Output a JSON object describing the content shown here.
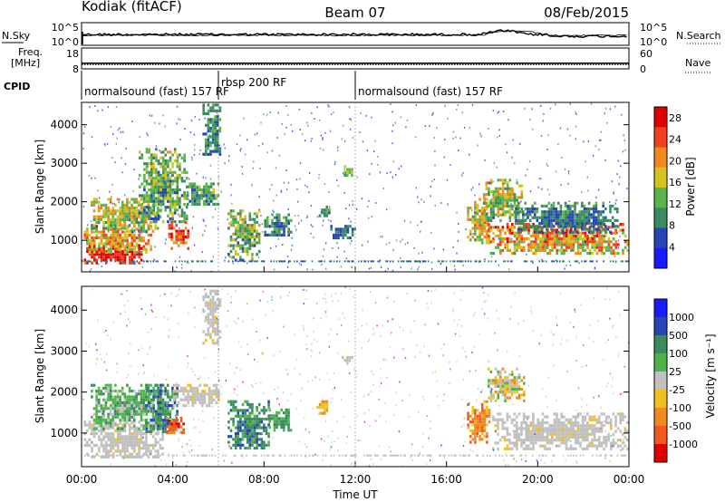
{
  "header": {
    "station": "Kodiak (fitACF)",
    "beam": "Beam 07",
    "date": "08/Feb/2015"
  },
  "noise_panel": {
    "left_label": "N.Sky",
    "right_label": "N.Search",
    "tick_top": "10^5",
    "tick_bottom": "10^0"
  },
  "freq_panel": {
    "left_label_1": "Freq.",
    "left_label_2": "[MHz]",
    "right_label": "Nave",
    "left_tick_top": "18",
    "left_tick_bottom": "8",
    "right_tick_top": "60",
    "right_tick_bottom": "0",
    "freq_value_mhz": 10.7,
    "nave_value": 12
  },
  "cpid": {
    "label": "CPID",
    "segments": [
      {
        "name": "normalsound (fast) 157 RF",
        "start_ut": "00:00",
        "end_ut": "06:00"
      },
      {
        "name": "rbsp 200 RF",
        "start_ut": "06:00",
        "end_ut": "12:00"
      },
      {
        "name": "normalsound (fast) 157 RF",
        "start_ut": "12:00",
        "end_ut": "24:00"
      }
    ]
  },
  "chart_data": [
    {
      "type": "heatmap",
      "name": "Power",
      "ylabel": "Slant Range [km]",
      "ylim": [
        180,
        4580
      ],
      "xlim_hours": [
        0,
        24
      ],
      "yticks": [
        "1000",
        "2000",
        "3000",
        "4000"
      ],
      "colorbar_label": "Power [dB]",
      "colorbar_ticks": [
        "4",
        "8",
        "12",
        "16",
        "20",
        "24",
        "28"
      ],
      "colorbar_range": [
        0,
        30
      ],
      "colors": [
        "#1a1aff",
        "#2845b4",
        "#3a8a62",
        "#5ab34c",
        "#d4c21e",
        "#f08a1a",
        "#f0401e",
        "#e00000"
      ],
      "blobs": [
        {
          "t": [
            0.1,
            2.6
          ],
          "r": [
            400,
            900
          ],
          "v": [
            22,
            30
          ]
        },
        {
          "t": [
            0.1,
            3.0
          ],
          "r": [
            700,
            1400
          ],
          "v": [
            12,
            26
          ]
        },
        {
          "t": [
            0.4,
            3.4
          ],
          "r": [
            1200,
            2100
          ],
          "v": [
            8,
            22
          ]
        },
        {
          "t": [
            2.5,
            4.6
          ],
          "r": [
            1500,
            3400
          ],
          "v": [
            4,
            18
          ]
        },
        {
          "t": [
            3.8,
            4.7
          ],
          "r": [
            800,
            1500
          ],
          "v": [
            18,
            28
          ]
        },
        {
          "t": [
            4.5,
            6.0
          ],
          "r": [
            1900,
            2500
          ],
          "v": [
            4,
            16
          ]
        },
        {
          "t": [
            5.3,
            6.1
          ],
          "r": [
            3200,
            4550
          ],
          "v": [
            4,
            14
          ]
        },
        {
          "t": [
            6.4,
            7.8
          ],
          "r": [
            500,
            1800
          ],
          "v": [
            4,
            20
          ]
        },
        {
          "t": [
            7.9,
            9.2
          ],
          "r": [
            1100,
            1700
          ],
          "v": [
            4,
            14
          ]
        },
        {
          "t": [
            10.4,
            10.9
          ],
          "r": [
            1600,
            1900
          ],
          "v": [
            4,
            14
          ]
        },
        {
          "t": [
            11.5,
            11.9
          ],
          "r": [
            2700,
            2950
          ],
          "v": [
            10,
            18
          ]
        },
        {
          "t": [
            10.8,
            12.0
          ],
          "r": [
            1050,
            1400
          ],
          "v": [
            4,
            10
          ]
        },
        {
          "t": [
            16.9,
            17.9
          ],
          "r": [
            900,
            2100
          ],
          "v": [
            10,
            24
          ]
        },
        {
          "t": [
            17.6,
            19.3
          ],
          "r": [
            1500,
            2600
          ],
          "v": [
            6,
            22
          ]
        },
        {
          "t": [
            17.8,
            23.9
          ],
          "r": [
            650,
            1450
          ],
          "v": [
            10,
            28
          ]
        },
        {
          "t": [
            19.0,
            23.5
          ],
          "r": [
            1200,
            2000
          ],
          "v": [
            4,
            12
          ]
        }
      ]
    },
    {
      "type": "heatmap",
      "name": "Velocity",
      "ylabel": "Slant Range [km]",
      "xlabel": "Time UT",
      "ylim": [
        180,
        4580
      ],
      "xlim_hours": [
        0,
        24
      ],
      "yticks": [
        "1000",
        "2000",
        "3000",
        "4000"
      ],
      "xticks": [
        "00:00",
        "04:00",
        "08:00",
        "12:00",
        "16:00",
        "20:00",
        "00:00"
      ],
      "colorbar_label": "Velocity [m s⁻¹]",
      "colorbar_ticks": [
        "-1000",
        "-500",
        "-100",
        "-25",
        "25",
        "100",
        "500",
        "1000"
      ],
      "colors": [
        "#e00000",
        "#f05a1e",
        "#f08a1a",
        "#f0c020",
        "#c0c0c0",
        "#4fb34b",
        "#3a8a62",
        "#2845b4",
        "#1a1aff"
      ],
      "blobs": [
        {
          "t": [
            0.1,
            3.6
          ],
          "r": [
            400,
            1300
          ],
          "v": [
            4,
            4
          ],
          "gray": true
        },
        {
          "t": [
            0.4,
            3.5
          ],
          "r": [
            1100,
            2200
          ],
          "v": [
            4,
            6
          ]
        },
        {
          "t": [
            2.8,
            4.2
          ],
          "r": [
            1000,
            2200
          ],
          "v": [
            5,
            7
          ]
        },
        {
          "t": [
            3.7,
            4.5
          ],
          "r": [
            1000,
            1400
          ],
          "v": [
            0,
            2
          ]
        },
        {
          "t": [
            4.0,
            6.0
          ],
          "r": [
            1700,
            2200
          ],
          "v": [
            4,
            4
          ],
          "gray": true
        },
        {
          "t": [
            5.3,
            6.1
          ],
          "r": [
            3200,
            4500
          ],
          "v": [
            4,
            4
          ],
          "gray": true
        },
        {
          "t": [
            6.4,
            8.2
          ],
          "r": [
            600,
            1800
          ],
          "v": [
            5,
            7
          ]
        },
        {
          "t": [
            8.2,
            9.2
          ],
          "r": [
            1100,
            1600
          ],
          "v": [
            5,
            6
          ]
        },
        {
          "t": [
            10.3,
            10.9
          ],
          "r": [
            1500,
            1800
          ],
          "v": [
            2,
            3
          ]
        },
        {
          "t": [
            11.4,
            11.9
          ],
          "r": [
            2700,
            2950
          ],
          "v": [
            4,
            4
          ],
          "gray": true
        },
        {
          "t": [
            16.9,
            17.9
          ],
          "r": [
            800,
            1800
          ],
          "v": [
            1,
            3
          ]
        },
        {
          "t": [
            17.8,
            19.4
          ],
          "r": [
            1800,
            2600
          ],
          "v": [
            2,
            5
          ]
        },
        {
          "t": [
            18.0,
            23.9
          ],
          "r": [
            600,
            1500
          ],
          "v": [
            4,
            4
          ],
          "gray": true
        }
      ]
    }
  ]
}
